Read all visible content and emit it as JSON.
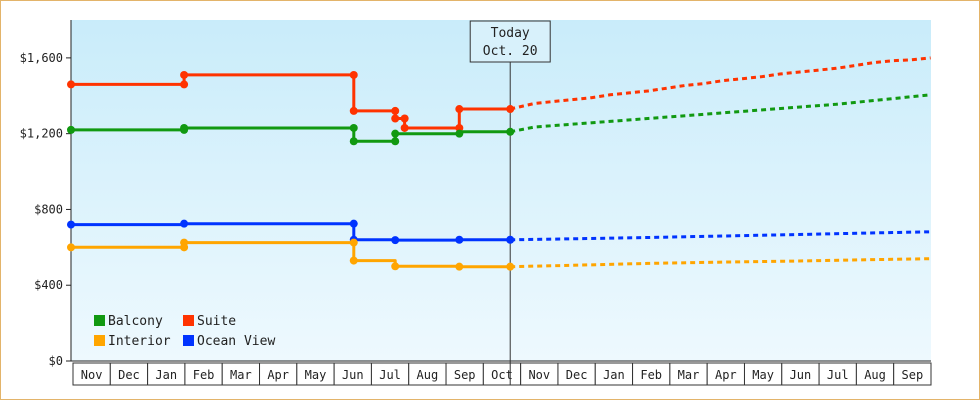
{
  "chart_data": {
    "type": "line",
    "title": "",
    "xlabel": "",
    "ylabel": "",
    "ylim": [
      0,
      1800
    ],
    "y_ticks": [
      {
        "value": 0,
        "label": "$0"
      },
      {
        "value": 400,
        "label": "$400"
      },
      {
        "value": 800,
        "label": "$800"
      },
      {
        "value": 1200,
        "label": "$1,200"
      },
      {
        "value": 1600,
        "label": "$1,600"
      }
    ],
    "x_months": [
      "Nov",
      "Dec",
      "Jan",
      "Feb",
      "Mar",
      "Apr",
      "May",
      "Jun",
      "Jul",
      "Aug",
      "Sep",
      "Oct",
      "Nov",
      "Dec",
      "Jan",
      "Feb",
      "Mar",
      "Apr",
      "May",
      "Jun",
      "Jul",
      "Aug",
      "Sep"
    ],
    "today": {
      "line1": "Today",
      "line2": "Oct. 20",
      "x": 11.65
    },
    "background_gradient": [
      "#c9ecfa",
      "#eef9fe"
    ],
    "legend": {
      "placement": "bottom-left",
      "items": [
        {
          "label": "Balcony",
          "color": "#119911"
        },
        {
          "label": "Suite",
          "color": "#ff3300"
        },
        {
          "label": "Interior",
          "color": "#ffa500"
        },
        {
          "label": "Ocean View",
          "color": "#0033ff"
        }
      ]
    },
    "series": [
      {
        "name": "Suite",
        "color": "#ff3300",
        "points": [
          [
            0,
            1460
          ],
          [
            3,
            1460
          ],
          [
            3,
            1510
          ],
          [
            7.5,
            1510
          ],
          [
            7.5,
            1320
          ],
          [
            8.6,
            1320
          ],
          [
            8.6,
            1280
          ],
          [
            8.85,
            1280
          ],
          [
            8.85,
            1230
          ],
          [
            10.3,
            1230
          ],
          [
            10.3,
            1330
          ],
          [
            11.65,
            1330
          ]
        ],
        "markers": [
          [
            0,
            1460
          ],
          [
            3,
            1460
          ],
          [
            3,
            1510
          ],
          [
            7.5,
            1510
          ],
          [
            7.5,
            1320
          ],
          [
            8.6,
            1320
          ],
          [
            8.6,
            1280
          ],
          [
            8.85,
            1280
          ],
          [
            8.85,
            1230
          ],
          [
            10.3,
            1230
          ],
          [
            10.3,
            1330
          ],
          [
            11.65,
            1330
          ]
        ],
        "forecast": [
          [
            11.65,
            1330
          ],
          [
            12.3,
            1360
          ],
          [
            12.8,
            1370
          ],
          [
            13.3,
            1380
          ],
          [
            13.8,
            1390
          ],
          [
            14.3,
            1405
          ],
          [
            14.8,
            1415
          ],
          [
            15.3,
            1425
          ],
          [
            15.8,
            1440
          ],
          [
            16.3,
            1455
          ],
          [
            16.8,
            1465
          ],
          [
            17.3,
            1480
          ],
          [
            17.8,
            1490
          ],
          [
            18.3,
            1500
          ],
          [
            18.8,
            1515
          ],
          [
            19.3,
            1525
          ],
          [
            19.8,
            1535
          ],
          [
            20.3,
            1545
          ],
          [
            20.8,
            1560
          ],
          [
            21.3,
            1575
          ],
          [
            21.8,
            1585
          ],
          [
            22.3,
            1590
          ],
          [
            22.8,
            1600
          ]
        ]
      },
      {
        "name": "Balcony",
        "color": "#119911",
        "points": [
          [
            0,
            1220
          ],
          [
            3,
            1220
          ],
          [
            3,
            1230
          ],
          [
            7.5,
            1230
          ],
          [
            7.5,
            1160
          ],
          [
            8.6,
            1160
          ],
          [
            8.6,
            1200
          ],
          [
            10.3,
            1200
          ],
          [
            10.3,
            1210
          ],
          [
            11.65,
            1210
          ]
        ],
        "markers": [
          [
            0,
            1220
          ],
          [
            3,
            1220
          ],
          [
            3,
            1230
          ],
          [
            7.5,
            1230
          ],
          [
            7.5,
            1160
          ],
          [
            8.6,
            1160
          ],
          [
            8.6,
            1200
          ],
          [
            10.3,
            1200
          ],
          [
            11.65,
            1210
          ]
        ],
        "forecast": [
          [
            11.65,
            1210
          ],
          [
            12.3,
            1235
          ],
          [
            13.3,
            1250
          ],
          [
            14.3,
            1265
          ],
          [
            15.3,
            1280
          ],
          [
            16.3,
            1295
          ],
          [
            17.3,
            1310
          ],
          [
            18.3,
            1325
          ],
          [
            19.3,
            1340
          ],
          [
            20.3,
            1355
          ],
          [
            21.3,
            1375
          ],
          [
            22.3,
            1395
          ],
          [
            22.8,
            1405
          ]
        ]
      },
      {
        "name": "Ocean View",
        "color": "#0033ff",
        "points": [
          [
            0,
            720
          ],
          [
            3,
            720
          ],
          [
            3,
            725
          ],
          [
            7.5,
            725
          ],
          [
            7.5,
            640
          ],
          [
            8.6,
            640
          ],
          [
            8.6,
            638
          ],
          [
            10.3,
            638
          ],
          [
            10.3,
            640
          ],
          [
            11.65,
            640
          ]
        ],
        "markers": [
          [
            0,
            720
          ],
          [
            3,
            725
          ],
          [
            7.5,
            725
          ],
          [
            7.5,
            640
          ],
          [
            8.6,
            638
          ],
          [
            10.3,
            640
          ],
          [
            11.65,
            640
          ]
        ],
        "forecast": [
          [
            11.65,
            640
          ],
          [
            13.3,
            645
          ],
          [
            15.3,
            652
          ],
          [
            17.3,
            660
          ],
          [
            19.3,
            668
          ],
          [
            21.3,
            676
          ],
          [
            22.8,
            682
          ]
        ]
      },
      {
        "name": "Interior",
        "color": "#ffa500",
        "points": [
          [
            0,
            600
          ],
          [
            3,
            600
          ],
          [
            3,
            625
          ],
          [
            7.5,
            625
          ],
          [
            7.5,
            530
          ],
          [
            8.6,
            530
          ],
          [
            8.6,
            500
          ],
          [
            10.3,
            500
          ],
          [
            10.3,
            498
          ],
          [
            11.65,
            498
          ]
        ],
        "markers": [
          [
            0,
            600
          ],
          [
            3,
            600
          ],
          [
            3,
            625
          ],
          [
            7.5,
            625
          ],
          [
            7.5,
            530
          ],
          [
            8.6,
            500
          ],
          [
            10.3,
            498
          ],
          [
            11.65,
            498
          ]
        ],
        "forecast": [
          [
            11.65,
            498
          ],
          [
            13.3,
            505
          ],
          [
            15.3,
            515
          ],
          [
            17.3,
            522
          ],
          [
            19.3,
            528
          ],
          [
            21.3,
            535
          ],
          [
            22.8,
            540
          ]
        ]
      }
    ]
  }
}
